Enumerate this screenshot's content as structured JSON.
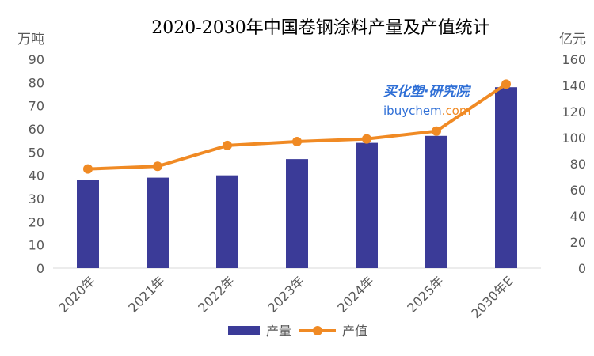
{
  "chart_data": {
    "type": "bar+line",
    "title": "2020-2030年中国卷钢涂料产量及产值统计",
    "categories": [
      "2020年",
      "2021年",
      "2022年",
      "2023年",
      "2024年",
      "2025年",
      "2030年E"
    ],
    "left_axis": {
      "unit": "万吨",
      "range": [
        0,
        90
      ],
      "ticks": [
        "0",
        "10",
        "20",
        "30",
        "40",
        "50",
        "60",
        "70",
        "80",
        "90"
      ]
    },
    "right_axis": {
      "unit": "亿元",
      "range": [
        0,
        160
      ],
      "ticks": [
        "0",
        "20",
        "40",
        "60",
        "80",
        "100",
        "120",
        "140",
        "160"
      ]
    },
    "series": [
      {
        "name": "产量",
        "kind": "bar",
        "axis": "left",
        "color": "#3b3b98",
        "values": [
          38,
          39,
          40,
          47,
          54,
          57,
          78
        ]
      },
      {
        "name": "产值",
        "kind": "line",
        "axis": "right",
        "color": "#f08a24",
        "values": [
          76,
          78,
          94,
          97,
          99,
          105,
          141
        ]
      }
    ],
    "legend": [
      "产量",
      "产值"
    ],
    "legend_position": "bottom",
    "grid": false
  },
  "watermark": {
    "line1": "买化塑·研究院",
    "line2a": "ibuychem",
    "line2b": ".com"
  }
}
